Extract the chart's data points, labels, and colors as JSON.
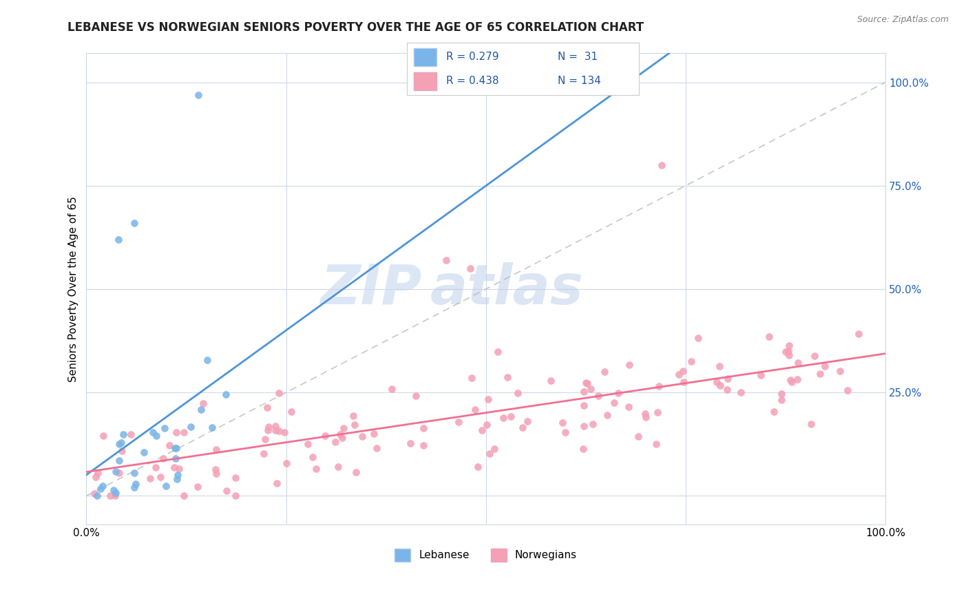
{
  "title": "LEBANESE VS NORWEGIAN SENIORS POVERTY OVER THE AGE OF 65 CORRELATION CHART",
  "source": "Source: ZipAtlas.com",
  "ylabel": "Seniors Poverty Over the Age of 65",
  "legend_labels": [
    "Lebanese",
    "Norwegians"
  ],
  "watermark_zip": "ZIP",
  "watermark_atlas": "atlas",
  "lebanese_R": 0.279,
  "lebanese_N": 31,
  "norwegian_R": 0.438,
  "norwegian_N": 134,
  "lebanese_color": "#7ab4e8",
  "norwegian_color": "#f4a0b5",
  "lebanese_line_color": "#4d94d9",
  "norwegian_line_color": "#f07090",
  "trend_line_color": "#b0b0b0",
  "background_color": "#ffffff",
  "grid_color": "#d0d8e8"
}
